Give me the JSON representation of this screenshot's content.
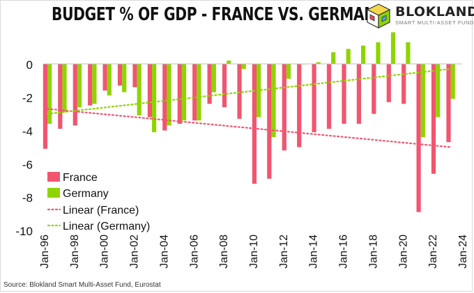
{
  "chart_data": {
    "type": "bar",
    "title": "BUDGET % OF GDP - FRANCE VS. GERMANY",
    "xlabel": "",
    "ylabel": "",
    "ylim": [
      -10,
      2
    ],
    "yticks": [
      0,
      -2,
      -4,
      -6,
      -8,
      -10
    ],
    "xlim": [
      "Jan-96",
      "Jan-24"
    ],
    "xtick_labels": [
      "Jan-96",
      "Jan-98",
      "Jan-00",
      "Jan-02",
      "Jan-04",
      "Jan-06",
      "Jan-08",
      "Jan-10",
      "Jan-12",
      "Jan-14",
      "Jan-16",
      "Jan-18",
      "Jan-20",
      "Jan-22",
      "Jan-24"
    ],
    "grid": false,
    "legend_position": "bottom-left",
    "categories": [
      "1996",
      "1997",
      "1998",
      "1999",
      "2000",
      "2001",
      "2002",
      "2003",
      "2004",
      "2005",
      "2006",
      "2007",
      "2008",
      "2009",
      "2010",
      "2011",
      "2012",
      "2013",
      "2014",
      "2015",
      "2016",
      "2017",
      "2018",
      "2019",
      "2020",
      "2021",
      "2022",
      "2023"
    ],
    "series": [
      {
        "name": "France",
        "color": "#f2556f",
        "values": [
          -5.1,
          -3.9,
          -3.7,
          -2.5,
          -1.6,
          -1.3,
          -1.4,
          -3.2,
          -4.0,
          -3.6,
          -3.4,
          -2.4,
          -2.6,
          -3.3,
          -7.2,
          -6.9,
          -5.2,
          -5.0,
          -4.1,
          -3.9,
          -3.6,
          -3.6,
          -3.0,
          -2.3,
          -2.4,
          -8.9,
          -6.6,
          -4.7
        ]
      },
      {
        "name": "Germany",
        "color": "#8fd400",
        "values": [
          -3.6,
          -2.9,
          -2.6,
          -2.4,
          -1.9,
          -1.7,
          -3.1,
          -4.1,
          -3.7,
          -3.4,
          -3.4,
          -1.7,
          0.2,
          -0.3,
          -3.2,
          -4.4,
          -0.9,
          0.0,
          0.1,
          0.7,
          0.9,
          1.1,
          1.3,
          1.9,
          1.3,
          -4.4,
          -3.2,
          -2.1
        ]
      }
    ],
    "trendlines": [
      {
        "name": "Linear (France)",
        "color": "#f2556f",
        "start": [
          "1996",
          -2.7
        ],
        "end": [
          "2023",
          -5.0
        ]
      },
      {
        "name": "Linear (Germany)",
        "color": "#8fd400",
        "start": [
          "1996",
          -3.0
        ],
        "end": [
          "2023",
          -0.3
        ]
      }
    ],
    "legend": [
      "France",
      "Germany",
      "Linear (France)",
      "Linear (Germany)"
    ]
  },
  "logo": {
    "name": "BLOKLAND",
    "tagline": "SMART MULTI-ASSET FUND"
  },
  "source": "Source: Blokland Smart Multi-Asset Fund, Eurostat"
}
